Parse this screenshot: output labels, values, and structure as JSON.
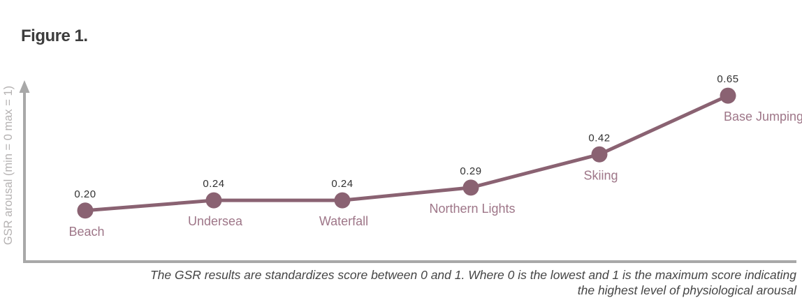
{
  "figure": {
    "title": "Figure 1.",
    "caption": "The GSR results are standardizes score between 0 and 1. Where 0 is the lowest and 1 is the maximum score indicating the highest level of physiological arousal"
  },
  "chart_data": {
    "type": "line",
    "title": "Figure 1.",
    "categories": [
      "Beach",
      "Undersea",
      "Waterfall",
      "Northern Lights",
      "Skiing",
      "Base Jumping"
    ],
    "values": [
      0.2,
      0.24,
      0.24,
      0.29,
      0.42,
      0.65
    ],
    "value_labels": [
      "0.20",
      "0.24",
      "0.24",
      "0.29",
      "0.42",
      "0.65"
    ],
    "xlabel": "",
    "ylabel": "GSR arousal (min = 0 max = 1)",
    "ylim": [
      0,
      1
    ],
    "grid": false,
    "legend": null,
    "colors": {
      "line": "#8a6272",
      "point": "#8a6272",
      "category_label": "#9e7688",
      "value_label": "#313131",
      "axis": "#a8a8a8",
      "axis_label": "#b5b2b2",
      "title": "#3d3d3d",
      "caption": "#454545"
    }
  }
}
